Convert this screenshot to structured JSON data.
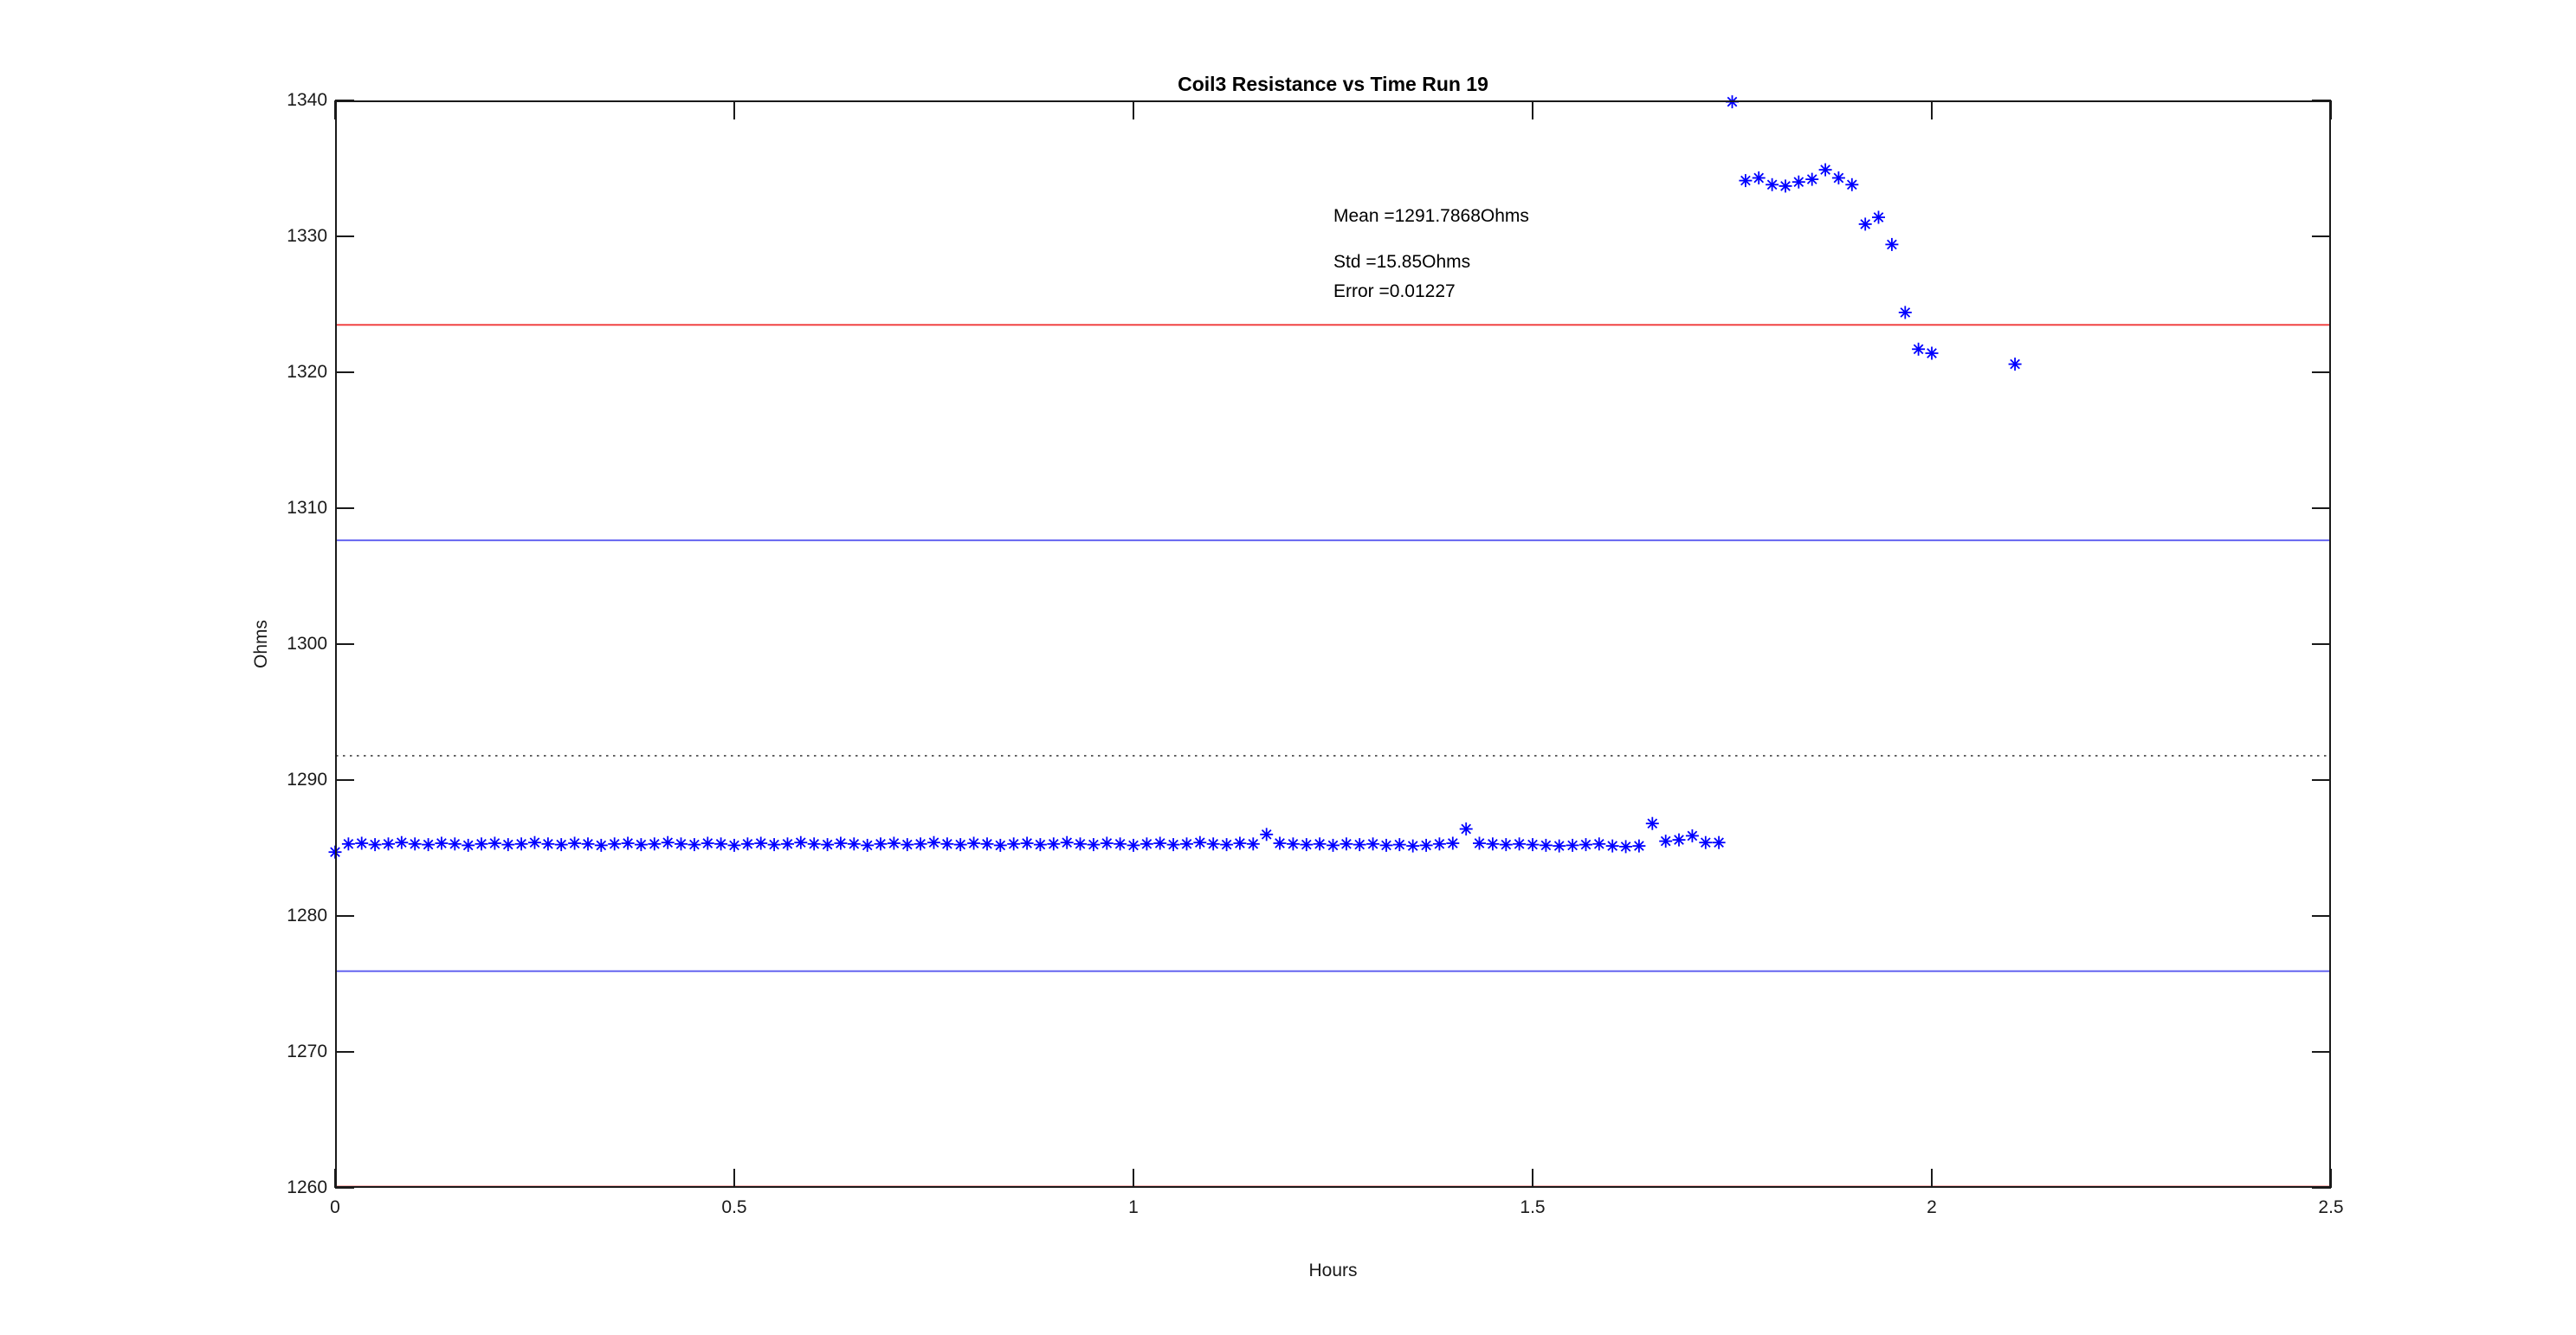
{
  "figure": {
    "title": "Coil3 Resistance vs Time Run 19",
    "xlabel": "Hours",
    "ylabel": "Ohms",
    "annotations": {
      "mean": "Mean =1291.7868Ohms",
      "std": "Std =15.85Ohms",
      "error": "Error =0.01227"
    }
  },
  "colors": {
    "background": "#ffffff",
    "axis": "#1a1a1a",
    "marker": "#0000ff",
    "sigma_line": "#6565f0",
    "two_sigma_line": "#f04343",
    "mean_line": "#404040"
  },
  "chart_data": {
    "type": "scatter",
    "title": "Coil3 Resistance vs Time Run 19",
    "xlabel": "Hours",
    "ylabel": "Ohms",
    "xlim": [
      0,
      2.5
    ],
    "ylim": [
      1260,
      1340
    ],
    "grid": false,
    "legend": "none",
    "xticks": {
      "values": [
        0,
        0.5,
        1,
        1.5,
        2,
        2.5
      ],
      "labels": [
        "0",
        "0.5",
        "1",
        "1.5",
        "2",
        "2.5"
      ]
    },
    "yticks": {
      "values": [
        1260,
        1270,
        1280,
        1290,
        1300,
        1310,
        1320,
        1330,
        1340
      ],
      "labels": [
        "1260",
        "1270",
        "1280",
        "1290",
        "1300",
        "1310",
        "1320",
        "1330",
        "1340"
      ]
    },
    "stats": {
      "mean_ohms": 1291.7868,
      "std_ohms": 15.85,
      "error": 0.01227
    },
    "reference_lines": [
      {
        "name": "mean-plus-2std",
        "value": 1323.4868,
        "color": "#f04343",
        "style": "solid"
      },
      {
        "name": "mean-plus-1std",
        "value": 1307.6368,
        "color": "#6565f0",
        "style": "solid"
      },
      {
        "name": "mean",
        "value": 1291.7868,
        "color": "#404040",
        "style": "dotted"
      },
      {
        "name": "mean-minus-1std",
        "value": 1275.9368,
        "color": "#6565f0",
        "style": "solid"
      },
      {
        "name": "mean-minus-2std",
        "value": 1260.0868,
        "color": "#f04343",
        "style": "solid"
      }
    ],
    "series": [
      {
        "name": "Coil3 resistance",
        "marker": "asterisk",
        "color": "#0000ff",
        "points": [
          [
            0.0,
            1284.7
          ],
          [
            0.0167,
            1285.3
          ],
          [
            0.0333,
            1285.35
          ],
          [
            0.05,
            1285.25
          ],
          [
            0.0667,
            1285.3
          ],
          [
            0.0833,
            1285.4
          ],
          [
            0.1,
            1285.3
          ],
          [
            0.1167,
            1285.25
          ],
          [
            0.1333,
            1285.35
          ],
          [
            0.15,
            1285.3
          ],
          [
            0.1667,
            1285.2
          ],
          [
            0.1833,
            1285.3
          ],
          [
            0.2,
            1285.35
          ],
          [
            0.2167,
            1285.25
          ],
          [
            0.2333,
            1285.3
          ],
          [
            0.25,
            1285.4
          ],
          [
            0.2667,
            1285.3
          ],
          [
            0.2833,
            1285.25
          ],
          [
            0.3,
            1285.35
          ],
          [
            0.3167,
            1285.3
          ],
          [
            0.3333,
            1285.2
          ],
          [
            0.35,
            1285.3
          ],
          [
            0.3667,
            1285.35
          ],
          [
            0.3833,
            1285.25
          ],
          [
            0.4,
            1285.3
          ],
          [
            0.4167,
            1285.4
          ],
          [
            0.4333,
            1285.3
          ],
          [
            0.45,
            1285.25
          ],
          [
            0.4667,
            1285.35
          ],
          [
            0.4833,
            1285.3
          ],
          [
            0.5,
            1285.2
          ],
          [
            0.5167,
            1285.3
          ],
          [
            0.5333,
            1285.35
          ],
          [
            0.55,
            1285.25
          ],
          [
            0.5667,
            1285.3
          ],
          [
            0.5833,
            1285.4
          ],
          [
            0.6,
            1285.3
          ],
          [
            0.6167,
            1285.25
          ],
          [
            0.6333,
            1285.35
          ],
          [
            0.65,
            1285.3
          ],
          [
            0.6667,
            1285.2
          ],
          [
            0.6833,
            1285.3
          ],
          [
            0.7,
            1285.35
          ],
          [
            0.7167,
            1285.25
          ],
          [
            0.7333,
            1285.3
          ],
          [
            0.75,
            1285.4
          ],
          [
            0.7667,
            1285.3
          ],
          [
            0.7833,
            1285.25
          ],
          [
            0.8,
            1285.35
          ],
          [
            0.8167,
            1285.3
          ],
          [
            0.8333,
            1285.2
          ],
          [
            0.85,
            1285.3
          ],
          [
            0.8667,
            1285.35
          ],
          [
            0.8833,
            1285.25
          ],
          [
            0.9,
            1285.3
          ],
          [
            0.9167,
            1285.4
          ],
          [
            0.9333,
            1285.3
          ],
          [
            0.95,
            1285.25
          ],
          [
            0.9667,
            1285.35
          ],
          [
            0.9833,
            1285.3
          ],
          [
            1.0,
            1285.2
          ],
          [
            1.0167,
            1285.3
          ],
          [
            1.0333,
            1285.35
          ],
          [
            1.05,
            1285.25
          ],
          [
            1.0667,
            1285.3
          ],
          [
            1.0833,
            1285.4
          ],
          [
            1.1,
            1285.3
          ],
          [
            1.1167,
            1285.25
          ],
          [
            1.1333,
            1285.35
          ],
          [
            1.15,
            1285.3
          ],
          [
            1.1667,
            1286.0
          ],
          [
            1.1833,
            1285.35
          ],
          [
            1.2,
            1285.3
          ],
          [
            1.2167,
            1285.25
          ],
          [
            1.2333,
            1285.3
          ],
          [
            1.25,
            1285.2
          ],
          [
            1.2667,
            1285.3
          ],
          [
            1.2833,
            1285.25
          ],
          [
            1.3,
            1285.3
          ],
          [
            1.3167,
            1285.2
          ],
          [
            1.3333,
            1285.25
          ],
          [
            1.35,
            1285.15
          ],
          [
            1.3667,
            1285.2
          ],
          [
            1.3833,
            1285.3
          ],
          [
            1.4,
            1285.35
          ],
          [
            1.4167,
            1286.4
          ],
          [
            1.4333,
            1285.35
          ],
          [
            1.45,
            1285.3
          ],
          [
            1.4667,
            1285.25
          ],
          [
            1.4833,
            1285.3
          ],
          [
            1.5,
            1285.25
          ],
          [
            1.5167,
            1285.2
          ],
          [
            1.5333,
            1285.15
          ],
          [
            1.55,
            1285.2
          ],
          [
            1.5667,
            1285.25
          ],
          [
            1.5833,
            1285.3
          ],
          [
            1.6,
            1285.15
          ],
          [
            1.6167,
            1285.1
          ],
          [
            1.6333,
            1285.15
          ],
          [
            1.65,
            1286.8
          ],
          [
            1.6667,
            1285.5
          ],
          [
            1.6833,
            1285.6
          ],
          [
            1.7,
            1285.9
          ],
          [
            1.7167,
            1285.4
          ],
          [
            1.7333,
            1285.4
          ],
          [
            1.75,
            1339.9
          ],
          [
            1.7667,
            1334.1
          ],
          [
            1.7833,
            1334.3
          ],
          [
            1.8,
            1333.8
          ],
          [
            1.8167,
            1333.7
          ],
          [
            1.8333,
            1334.0
          ],
          [
            1.85,
            1334.2
          ],
          [
            1.8667,
            1334.9
          ],
          [
            1.8833,
            1334.3
          ],
          [
            1.9,
            1333.8
          ],
          [
            1.9167,
            1330.9
          ],
          [
            1.9333,
            1331.4
          ],
          [
            1.95,
            1329.4
          ],
          [
            1.9667,
            1324.4
          ],
          [
            1.9833,
            1321.7
          ],
          [
            2.0,
            1321.4
          ],
          [
            2.1042,
            1320.6
          ]
        ]
      }
    ]
  }
}
